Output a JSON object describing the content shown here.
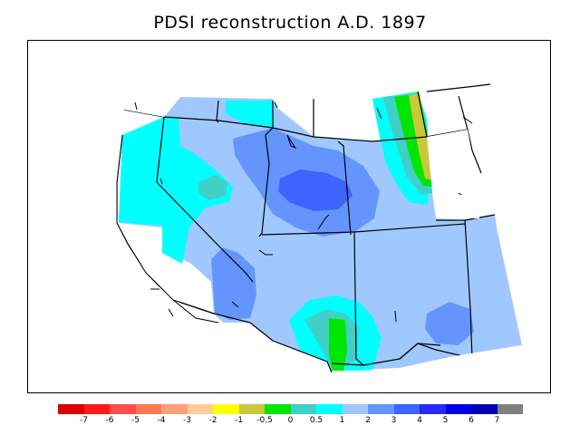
{
  "title": "PDSI reconstruction A.D. 1897",
  "colorbar": {
    "colors": [
      "#d90000",
      "#ff1a1a",
      "#ff4d4d",
      "#ff7a50",
      "#ffa07a",
      "#ffcc99",
      "#ffff00",
      "#c8c83c",
      "#00e600",
      "#40d0c8",
      "#00ffff",
      "#a0c8ff",
      "#6495ff",
      "#3c64ff",
      "#2828ff",
      "#0000e6",
      "#0000b4",
      "#808080"
    ],
    "labels": [
      "-7",
      "-6",
      "-5",
      "-4",
      "-3",
      "-2",
      "-1",
      "-0.5",
      "0",
      "0.5",
      "1",
      "2",
      "3",
      "4",
      "5",
      "6",
      "7"
    ]
  }
}
